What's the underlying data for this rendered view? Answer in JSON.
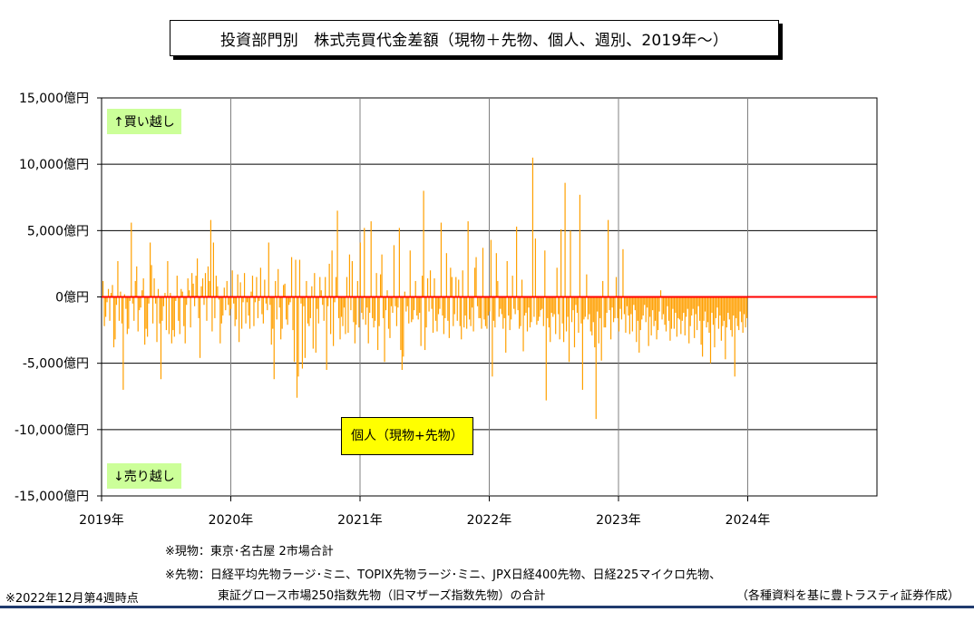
{
  "title": "投資部門別　株式売買代金差額（現物＋先物、個人、週別、2019年～）",
  "chart_data": {
    "type": "bar",
    "y_ticks": [
      "15,000億円",
      "10,000億円",
      "5,000億円",
      "0億円",
      "-5,000億円",
      "-10,000億円",
      "-15,000億円"
    ],
    "x_ticks": [
      "2019年",
      "2020年",
      "2021年",
      "2022年",
      "2023年",
      "2024年"
    ],
    "ylim": [
      -15000,
      15000
    ],
    "xlim": [
      2019,
      2025
    ],
    "grid": true,
    "zero_line_color": "#ff0000",
    "bar_color": "#ffa000",
    "series": [
      {
        "values": [
          1200,
          -2200,
          -1500,
          -400,
          600,
          -1800,
          300,
          900,
          -3800,
          -3200,
          -600,
          2700,
          -1800,
          400,
          -2000,
          -7000,
          200,
          -900,
          -2800,
          -2400,
          -300,
          5600,
          -500,
          -1800,
          1200,
          2300,
          -2600,
          -1000,
          -800,
          500,
          1400,
          -3600,
          -2400,
          -3000,
          -500,
          4100,
          2400,
          -2000,
          1400,
          -500,
          -3400,
          600,
          -2000,
          -6200,
          -1800,
          -700,
          300,
          -2500,
          2700,
          -2800,
          300,
          -3500,
          -2500,
          -3000,
          -300,
          1600,
          -1800,
          -2800,
          600,
          400,
          -2200,
          -3500,
          -600,
          1400,
          500,
          -2300,
          1800,
          1000,
          -700,
          1600,
          2900,
          -1600,
          -4600,
          800,
          1400,
          -600,
          1800,
          -1800,
          2300,
          1200,
          5800,
          -2600,
          4100,
          -1600,
          1600,
          800,
          -200,
          -3500,
          -2000,
          -1400,
          700,
          -1000,
          1200,
          -600,
          -1400,
          -900,
          2000,
          -500,
          -2200,
          -1700,
          1700,
          -3400,
          1100,
          -2400,
          -400,
          1800,
          -2000,
          -400,
          -1400,
          -2400,
          400,
          1600,
          -2200,
          -400,
          1500,
          -1600,
          -300,
          2200,
          -1300,
          -2000,
          1300,
          -500,
          -1000,
          4100,
          -600,
          -3600,
          -2400,
          -6200,
          1200,
          -1700,
          2100,
          -800,
          -3200,
          -2400,
          900,
          1000,
          -1700,
          -2100,
          -600,
          -400,
          3000,
          -2500,
          -4900,
          2800,
          -7600,
          -6000,
          2800,
          -500,
          -5400,
          -700,
          -4600,
          1200,
          -2000,
          -2200,
          -1600,
          800,
          -3900,
          1800,
          -4200,
          -900,
          -2000,
          1500,
          500,
          -600,
          -1800,
          1500,
          -5500,
          -700,
          2500,
          -2800,
          3500,
          -3700,
          -400,
          1500,
          6500,
          -1600,
          -3200,
          -1500,
          -2200,
          -800,
          -2800,
          1500,
          -2700,
          3200,
          -1000,
          2700,
          -1900,
          -3500,
          -2100,
          1200,
          -2300,
          4100,
          -1200,
          -1700,
          5200,
          -2100,
          -800,
          -3500,
          -1200,
          5700,
          -1600,
          -2300,
          -1800,
          1800,
          -4000,
          -2200,
          1700,
          3200,
          -1600,
          -4900,
          -1000,
          500,
          -2400,
          -3100,
          -700,
          -1200,
          3900,
          -700,
          -2200,
          -800,
          5200,
          -4000,
          -5500,
          -4500,
          400,
          -1100,
          -700,
          -2000,
          3500,
          -1900,
          -1700,
          -1000,
          1200,
          -1400,
          -1700,
          -1200,
          -3700,
          1600,
          8000,
          -4000,
          -2300,
          1400,
          -1100,
          2000,
          -900,
          -2700,
          1400,
          -1800,
          -2600,
          -1300,
          -900,
          5600,
          -1400,
          -2800,
          -1600,
          3300,
          -1800,
          -3100,
          2200,
          1500,
          -2200,
          -1300,
          1500,
          -1800,
          1300,
          -2200,
          -3200,
          2000,
          -2300,
          -1400,
          -2400,
          5700,
          -1700,
          -2200,
          -800,
          -2600,
          2200,
          3000,
          -700,
          -1600,
          -1600,
          -2400,
          3700,
          -1700,
          -2200,
          -2400,
          -1400,
          -1100,
          4300,
          -6000,
          -1800,
          -2300,
          3300,
          1200,
          -1500,
          -900,
          -1300,
          -2400,
          -1600,
          -4200,
          2700,
          -1400,
          -2500,
          -1700,
          1600,
          -900,
          -1300,
          5300,
          -1000,
          -2400,
          -2200,
          1300,
          -4100,
          -1400,
          -1200,
          -2600,
          -800,
          -2300,
          -1900,
          10500,
          -1500,
          4400,
          -2100,
          -1800,
          -1500,
          -1000,
          -900,
          -2200,
          3500,
          -7800,
          -1600,
          -2300,
          -3400,
          -1200,
          -1500,
          -1300,
          -2800,
          2200,
          -1300,
          -3200,
          5100,
          -2000,
          -3400,
          8600,
          -2600,
          -1500,
          -4900,
          5000,
          -1900,
          -1000,
          -3800,
          -600,
          -1200,
          -2700,
          7700,
          -2000,
          -7000,
          -1700,
          -1500,
          1700,
          -1700,
          -1300,
          -2600,
          -2900,
          -1900,
          -3800,
          -9200,
          -1100,
          -3500,
          -1600,
          -4800,
          1200,
          -2300,
          -2300,
          -1200,
          5800,
          -1000,
          -3200,
          -800,
          -1900,
          -1600,
          1500,
          -1600,
          -2600,
          -900,
          -1700,
          3600,
          -1300,
          -2700,
          -700,
          -1400,
          -2800,
          -1300,
          -2600,
          -600,
          -1000,
          -3400,
          -1800,
          -4200,
          -2500,
          -1700,
          -1400,
          -600,
          -1900,
          -800,
          -3700,
          -1500,
          -2900,
          -1000,
          -2200,
          -1800,
          -3200,
          -2500,
          -1100,
          500,
          -1700,
          -1300,
          -2100,
          -2600,
          -700,
          -1800,
          -3300,
          -2400,
          -900,
          -2400,
          -1200,
          -3000,
          -1600,
          -1700,
          -2800,
          -1800,
          -1200,
          -2900,
          -1500,
          -900,
          -3500,
          -2200,
          -1400,
          -900,
          -3100,
          -1300,
          -2500,
          -700,
          -1800,
          -3600,
          -4500,
          -1800,
          -1100,
          -2300,
          -1900,
          -2700,
          -5000,
          -1200,
          -2100,
          -3800,
          -1600,
          -800,
          -2400,
          -1400,
          -3300,
          -2200,
          -1800,
          -4700,
          -2300,
          -1200,
          -1700,
          -2500,
          -3000,
          -1400,
          -6000,
          -1600,
          -2200,
          -2500,
          -1100,
          -1900,
          -2700,
          -1300,
          -2300,
          -1600
        ],
        "note": "weekly bars from Jan 2019; lengths approximate"
      }
    ]
  },
  "labels": {
    "buy": "↑買い越し",
    "sell": "↓売り越し",
    "series_box": "個人（現物+先物）"
  },
  "notes": {
    "spot": "※現物：東京･名古屋 2市場合計",
    "futures_1": "※先物：日経平均先物ラージ･ミニ、TOPIX先物ラージ･ミニ、JPX日経400先物、日経225マイクロ先物、",
    "futures_2": "東証グロース市場250指数先物（旧マザーズ指数先物）の合計",
    "as_of": "※2022年12月第4週時点",
    "source": "（各種資料を基に豊トラスティ証券作成）"
  }
}
